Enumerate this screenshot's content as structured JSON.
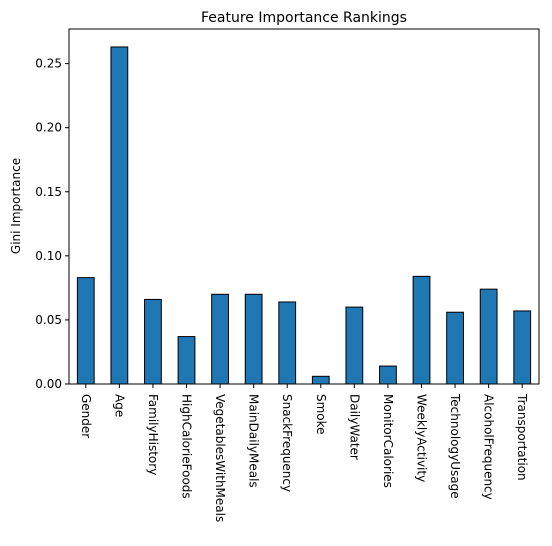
{
  "chart_data": {
    "type": "bar",
    "title": "Feature Importance Rankings",
    "xlabel": "",
    "ylabel": "Gini Importance",
    "categories": [
      "Gender",
      "Age",
      "FamilyHistory",
      "HighCalorieFoods",
      "VegetablesWithMeals",
      "MainDailyMeals",
      "SnackFrequency",
      "Smoke",
      "DailyWater",
      "MonitorCalories",
      "WeeklyActivity",
      "TechnologyUsage",
      "AlcoholFrequency",
      "Transportation"
    ],
    "values": [
      0.083,
      0.263,
      0.066,
      0.037,
      0.07,
      0.07,
      0.064,
      0.006,
      0.06,
      0.014,
      0.084,
      0.056,
      0.074,
      0.057
    ],
    "ylim": [
      0,
      0.277
    ],
    "yticks": [
      0.0,
      0.05,
      0.1,
      0.15,
      0.2,
      0.25
    ],
    "ytick_labels": [
      "0.00",
      "0.05",
      "0.10",
      "0.15",
      "0.20",
      "0.25"
    ],
    "bar_color": "#1f77b4",
    "edge_color": "#000000",
    "grid": false,
    "legend": "none"
  }
}
